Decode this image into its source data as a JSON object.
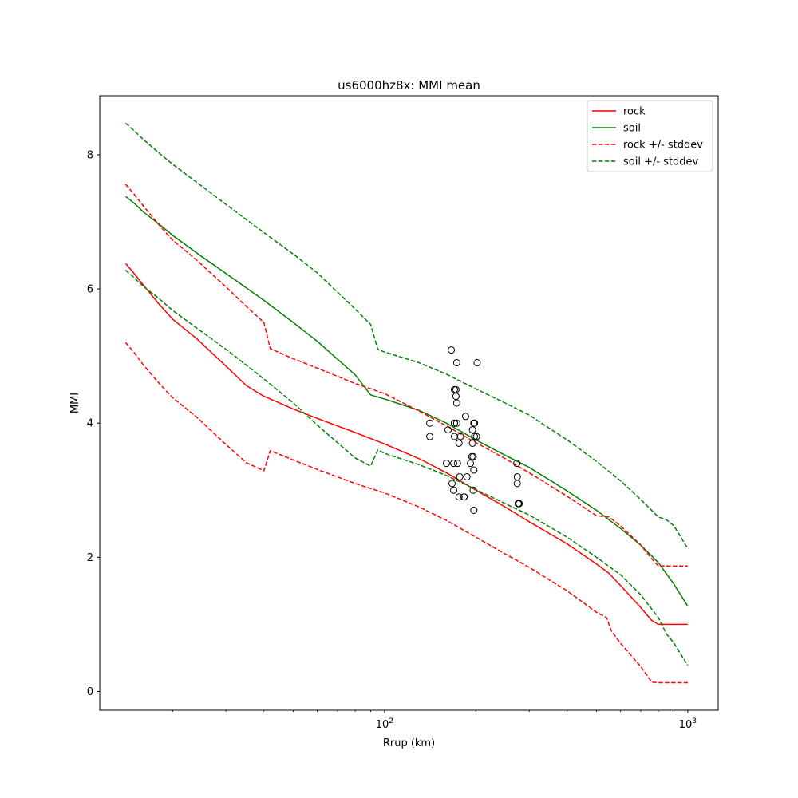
{
  "chart_data": {
    "type": "line",
    "title": "us6000hz8x: MMI mean",
    "xlabel": "Rrup (km)",
    "ylabel": "MMI",
    "xscale": "log",
    "xlim": [
      11.5,
      1260
    ],
    "ylim": [
      -0.28,
      8.88
    ],
    "xticks": [
      {
        "value": 100,
        "base": "10",
        "exp": "2"
      },
      {
        "value": 1000,
        "base": "10",
        "exp": "3"
      }
    ],
    "yticks": [
      {
        "value": 0,
        "label": "0"
      },
      {
        "value": 2,
        "label": "2"
      },
      {
        "value": 4,
        "label": "4"
      },
      {
        "value": 6,
        "label": "6"
      },
      {
        "value": 8,
        "label": "8"
      }
    ],
    "grid": false,
    "legend_position": "top-right",
    "series": [
      {
        "name": "rock",
        "color": "#ff0000",
        "style": "solid",
        "x": [
          14,
          15,
          16,
          18,
          20,
          24,
          30,
          35,
          40,
          42,
          50,
          60,
          80,
          100,
          130,
          160,
          200,
          250,
          300,
          400,
          500,
          550,
          600,
          700,
          760,
          800,
          900,
          1000
        ],
        "y": [
          6.38,
          6.22,
          6.06,
          5.78,
          5.55,
          5.26,
          4.85,
          4.56,
          4.4,
          4.36,
          4.21,
          4.07,
          3.86,
          3.69,
          3.47,
          3.26,
          3.0,
          2.75,
          2.53,
          2.2,
          1.9,
          1.76,
          1.58,
          1.25,
          1.06,
          1.0,
          1.0,
          1.0
        ]
      },
      {
        "name": "soil",
        "color": "#008000",
        "style": "solid",
        "x": [
          14,
          15,
          16,
          18,
          20,
          25,
          30,
          40,
          50,
          60,
          80,
          90,
          100,
          130,
          160,
          200,
          250,
          300,
          400,
          500,
          600,
          700,
          800,
          900,
          1000
        ],
        "y": [
          7.38,
          7.27,
          7.15,
          6.97,
          6.8,
          6.48,
          6.23,
          5.83,
          5.5,
          5.22,
          4.72,
          4.42,
          4.36,
          4.19,
          4.0,
          3.75,
          3.52,
          3.34,
          2.99,
          2.7,
          2.43,
          2.18,
          1.92,
          1.6,
          1.27
        ]
      },
      {
        "name": "rock +/- stddev",
        "color": "#ff0000",
        "style": "dashed",
        "x": [
          14,
          15,
          16,
          18,
          20,
          24,
          30,
          35,
          40,
          42,
          50,
          60,
          80,
          100,
          130,
          160,
          200,
          250,
          300,
          400,
          500,
          550,
          600,
          700,
          760,
          800,
          900,
          1000
        ],
        "y": [
          7.56,
          7.4,
          7.24,
          6.96,
          6.73,
          6.43,
          6.03,
          5.74,
          5.5,
          5.11,
          4.96,
          4.82,
          4.59,
          4.44,
          4.18,
          3.96,
          3.71,
          3.47,
          3.26,
          2.91,
          2.62,
          2.6,
          2.47,
          2.18,
          1.98,
          1.87,
          1.87,
          1.87
        ]
      },
      {
        "name": "rock +/- stddev",
        "color": "#ff0000",
        "style": "dashed",
        "legend": false,
        "x": [
          14,
          15,
          16,
          18,
          20,
          24,
          30,
          35,
          40,
          42,
          50,
          60,
          80,
          100,
          130,
          160,
          200,
          250,
          300,
          400,
          500,
          540,
          560,
          600,
          700,
          760,
          800,
          900,
          1000
        ],
        "y": [
          5.2,
          5.04,
          4.87,
          4.6,
          4.38,
          4.09,
          3.68,
          3.41,
          3.29,
          3.59,
          3.45,
          3.31,
          3.1,
          2.96,
          2.75,
          2.55,
          2.3,
          2.05,
          1.85,
          1.5,
          1.18,
          1.1,
          0.9,
          0.72,
          0.37,
          0.14,
          0.13,
          0.13,
          0.13
        ]
      },
      {
        "name": "soil +/- stddev",
        "color": "#008000",
        "style": "dashed",
        "x": [
          14,
          15,
          16,
          18,
          20,
          25,
          30,
          40,
          50,
          60,
          80,
          90,
          95,
          100,
          130,
          160,
          200,
          250,
          300,
          400,
          500,
          600,
          700,
          800,
          850,
          900,
          1000
        ],
        "y": [
          8.47,
          8.35,
          8.23,
          8.03,
          7.86,
          7.53,
          7.26,
          6.84,
          6.52,
          6.24,
          5.7,
          5.47,
          5.1,
          5.06,
          4.9,
          4.73,
          4.51,
          4.3,
          4.12,
          3.75,
          3.43,
          3.14,
          2.86,
          2.6,
          2.56,
          2.47,
          2.13
        ]
      },
      {
        "name": "soil +/- stddev",
        "color": "#008000",
        "style": "dashed",
        "legend": false,
        "x": [
          14,
          15,
          16,
          18,
          20,
          25,
          30,
          40,
          50,
          60,
          80,
          90,
          95,
          100,
          130,
          160,
          200,
          250,
          300,
          400,
          500,
          600,
          700,
          800,
          850,
          900,
          1000
        ],
        "y": [
          6.28,
          6.16,
          6.04,
          5.86,
          5.68,
          5.36,
          5.1,
          4.66,
          4.3,
          3.97,
          3.48,
          3.36,
          3.6,
          3.55,
          3.38,
          3.22,
          3.01,
          2.8,
          2.63,
          2.3,
          2.0,
          1.74,
          1.44,
          1.1,
          0.86,
          0.72,
          0.39
        ]
      }
    ],
    "observations": {
      "name": "observations",
      "marker": "open-circle",
      "color": "#000000",
      "x": [
        141,
        141,
        160,
        162,
        166,
        167,
        169,
        169,
        170,
        170,
        170,
        170,
        172,
        172,
        173,
        173,
        173,
        174,
        176,
        176,
        177,
        178,
        183,
        183,
        185,
        187,
        192,
        194,
        195,
        195,
        196,
        196,
        197,
        197,
        197,
        198,
        198,
        201,
        202,
        273,
        274,
        274,
        276,
        276,
        278
      ],
      "y": [
        4.0,
        3.8,
        3.4,
        3.9,
        5.09,
        3.1,
        3.0,
        3.4,
        4.0,
        4.0,
        3.8,
        4.5,
        4.5,
        4.4,
        4.3,
        4.9,
        4.0,
        3.4,
        3.7,
        2.9,
        3.2,
        3.8,
        2.9,
        2.9,
        4.1,
        3.2,
        3.4,
        3.5,
        3.7,
        3.9,
        3.0,
        3.5,
        2.7,
        4.0,
        3.3,
        3.8,
        4.0,
        3.8,
        4.9,
        3.4,
        3.2,
        3.1,
        2.8,
        2.8,
        2.8
      ]
    }
  }
}
